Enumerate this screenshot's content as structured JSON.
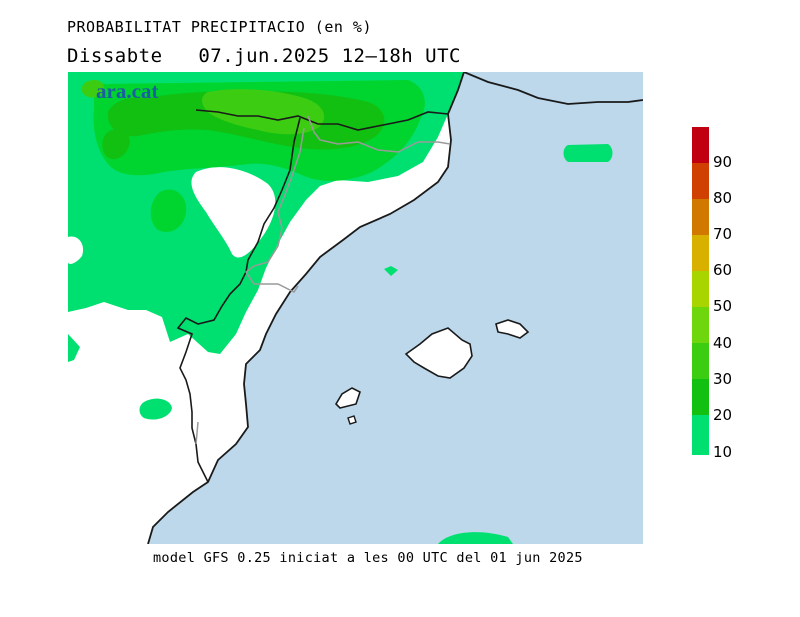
{
  "header": {
    "title": "PROBABILITAT PRECIPITACIO (en %)",
    "subtitle": "Dissabte   07.jun.2025 12–18h UTC"
  },
  "watermark": "ara.cat",
  "footer": "model GFS 0.25 iniciat a les 00 UTC del 01 jun 2025",
  "colors": {
    "sea": "#bcd8ea",
    "land": "#ffffff",
    "p10": "#00e070",
    "p20": "#00d42e",
    "p30": "#12c012",
    "p40": "#3ccd13",
    "p50": "#6ed60c",
    "p60": "#a8d400",
    "p70": "#d8b000",
    "p80": "#d07800",
    "p90": "#d04000",
    "p100": "#c00010"
  },
  "legend": {
    "labels": [
      "90",
      "80",
      "70",
      "60",
      "50",
      "40",
      "30",
      "20",
      "10"
    ]
  }
}
